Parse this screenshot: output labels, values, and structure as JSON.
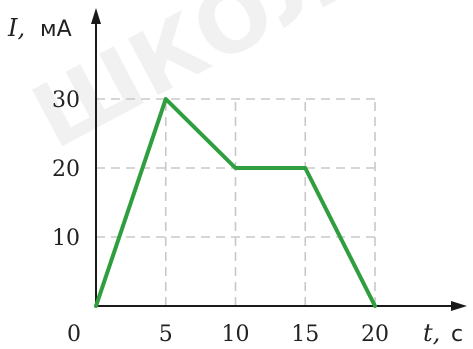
{
  "watermark": "ШКОЛ",
  "colors": {
    "line": "#2e9e3e",
    "grid": "#c8c8c8",
    "axis": "#1a1a1a"
  },
  "chart_data": {
    "type": "line",
    "x": [
      0,
      5,
      10,
      15,
      20
    ],
    "series": [
      {
        "values": [
          0,
          30,
          20,
          20,
          0
        ]
      }
    ],
    "xlabel": {
      "var": "t,",
      "unit": "с"
    },
    "ylabel": {
      "var": "I,",
      "unit": "мА"
    },
    "xticks": [
      "0",
      "5",
      "10",
      "15",
      "20"
    ],
    "yticks": [
      "10",
      "20",
      "30"
    ],
    "xlim": [
      0,
      20
    ],
    "ylim": [
      0,
      30
    ],
    "grid": true,
    "grid_style": "dashed"
  }
}
